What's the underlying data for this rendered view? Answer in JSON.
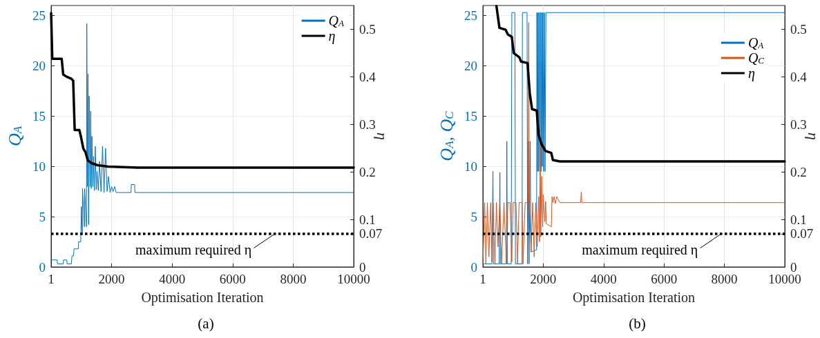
{
  "chart_data": [
    {
      "type": "line",
      "title": "(a)",
      "xlabel": "Optimisation Iteration",
      "ylabel": "Q$_{A}$",
      "y2label": "η",
      "xlim": [
        1,
        10000
      ],
      "xticks": [
        1,
        2000,
        4000,
        6000,
        8000,
        10000
      ],
      "ylim": [
        0,
        26
      ],
      "yticks": [
        0,
        5,
        10,
        15,
        20,
        25
      ],
      "y2lim": [
        0,
        0.55
      ],
      "y2ticks": [
        0,
        0.07,
        0.1,
        0.2,
        0.3,
        0.4,
        0.5
      ],
      "grid": true,
      "legend": "top right",
      "marker": "none",
      "line_style": "solid",
      "series": [
        {
          "name": "Q$_{A}$",
          "color": "#0072bd",
          "x": [
            1,
            200,
            210,
            400,
            410,
            520,
            530,
            670,
            690,
            740,
            760,
            900,
            910,
            980,
            1000,
            1030,
            1040,
            1100,
            1110,
            1170,
            1180,
            1200,
            1220,
            1240,
            1260,
            1290,
            1310,
            1330,
            1350,
            1380,
            1400,
            1430,
            1460,
            1490,
            1520,
            1560,
            1600,
            1650,
            1700,
            1750,
            1800,
            1850,
            1900,
            1950,
            2000,
            2050,
            2100,
            2150,
            2230,
            2640,
            2650,
            2760,
            2770,
            10000
          ],
          "values": [
            0.7,
            0.7,
            0.3,
            0.3,
            0.7,
            0.7,
            0.3,
            0.3,
            1.1,
            1.1,
            1.8,
            1.8,
            2.5,
            2.5,
            6,
            3.2,
            7.8,
            4,
            7.8,
            4,
            24.2,
            8,
            19.2,
            4.2,
            17,
            8,
            15.5,
            7.8,
            13,
            8,
            11,
            7.6,
            12,
            7.7,
            9.5,
            7.6,
            10.5,
            7.5,
            12,
            7.4,
            11.8,
            7.5,
            9,
            7.4,
            8,
            7.5,
            8,
            7.4,
            7.4,
            7.4,
            8.2,
            8.2,
            7.4,
            7.4
          ]
        },
        {
          "name": "η",
          "color": "#000000",
          "axis": "y2",
          "x": [
            1,
            40,
            350,
            400,
            520,
            670,
            730,
            780,
            935,
            990,
            1065,
            1140,
            1215,
            1350,
            1540,
            1885,
            2870,
            10000
          ],
          "values": [
            0.534,
            0.438,
            0.438,
            0.405,
            0.4,
            0.396,
            0.392,
            0.288,
            0.288,
            0.273,
            0.249,
            0.241,
            0.224,
            0.218,
            0.214,
            0.211,
            0.209,
            0.209
          ]
        }
      ],
      "ref_lines": [
        {
          "axis": "y2",
          "value": 0.07,
          "color": "#000000",
          "line_style": "dotted",
          "label": "maximum required η"
        }
      ]
    },
    {
      "type": "line",
      "title": "(b)",
      "xlabel": "Optimisation Iteration",
      "ylabel": "Q$_{A}$, Q$_{C}$",
      "y2label": "η",
      "xlim": [
        1,
        10000
      ],
      "xticks": [
        1,
        2000,
        4000,
        6000,
        8000,
        10000
      ],
      "ylim": [
        0,
        26
      ],
      "yticks": [
        0,
        5,
        10,
        15,
        20,
        25
      ],
      "y2lim": [
        0,
        0.55
      ],
      "y2ticks": [
        0,
        0.07,
        0.1,
        0.2,
        0.3,
        0.4,
        0.5
      ],
      "grid": true,
      "legend": "top right",
      "marker": "none",
      "line_style": "solid",
      "series": [
        {
          "name": "Q$_{A}$",
          "color": "#0072bd",
          "x": [
            1,
            300,
            335,
            350,
            540,
            565,
            580,
            780,
            795,
            810,
            940,
            960,
            1060,
            1080,
            1300,
            1310,
            1465,
            1480,
            1510,
            1530,
            1570,
            1590,
            1780,
            1790,
            1810,
            1830,
            1850,
            1870,
            1890,
            1910,
            1930,
            1950,
            1970,
            1990,
            2010,
            2040,
            2060,
            2090,
            10000
          ],
          "values": [
            0.3,
            0.3,
            9.5,
            0.3,
            0.3,
            9.4,
            0.3,
            0.3,
            12.5,
            0.3,
            0.3,
            25.3,
            25.3,
            0.3,
            0.3,
            25.3,
            25.3,
            0.3,
            12.5,
            0.3,
            12.5,
            1.5,
            1.7,
            25.3,
            9.5,
            25.3,
            9.5,
            25.3,
            10,
            25.3,
            9.5,
            25.3,
            10,
            25.3,
            9.5,
            25.3,
            9.5,
            25.3,
            25.3
          ]
        },
        {
          "name": "Q$_{C}$",
          "color": "#d95319",
          "x": [
            1,
            60,
            100,
            150,
            200,
            260,
            300,
            340,
            400,
            450,
            500,
            560,
            620,
            700,
            780,
            830,
            900,
            960,
            1000,
            1100,
            1150,
            1200,
            1300,
            1330,
            1400,
            1500,
            1520,
            1540,
            1600,
            1650,
            1700,
            1750,
            1800,
            1850,
            1880,
            1900,
            1920,
            1950,
            1980,
            2000,
            2050,
            2080,
            2100,
            2270,
            2290,
            2320,
            2360,
            2400,
            2450,
            2550,
            3240,
            3260,
            3280,
            10000
          ],
          "values": [
            0.3,
            6.4,
            0.3,
            6.4,
            1,
            6.4,
            0.5,
            6.4,
            0.3,
            6.4,
            2,
            6.4,
            0.3,
            6.4,
            0.3,
            6.4,
            6.4,
            0.5,
            6.4,
            6.4,
            0.3,
            6.4,
            6.4,
            0.3,
            6.4,
            6.4,
            24.3,
            6.4,
            1.5,
            6.4,
            1,
            6.4,
            2,
            7,
            2.5,
            12.7,
            3,
            9,
            4,
            7.2,
            4.5,
            6.5,
            4.3,
            4,
            7,
            6.4,
            7,
            6.3,
            7,
            6.4,
            6.4,
            7.45,
            6.4,
            6.4
          ]
        },
        {
          "name": "η",
          "color": "#000000",
          "axis": "y2",
          "x": [
            450,
            550,
            755,
            830,
            960,
            1020,
            1210,
            1265,
            1480,
            1555,
            1630,
            1785,
            1845,
            1940,
            2075,
            2265,
            2320,
            2550,
            10000
          ],
          "values": [
            0.549,
            0.503,
            0.499,
            0.489,
            0.484,
            0.45,
            0.441,
            0.432,
            0.429,
            0.365,
            0.332,
            0.329,
            0.278,
            0.259,
            0.244,
            0.24,
            0.225,
            0.222,
            0.222
          ]
        }
      ],
      "ref_lines": [
        {
          "axis": "y2",
          "value": 0.07,
          "color": "#000000",
          "line_style": "dotted",
          "label": "maximum required η"
        }
      ]
    }
  ]
}
